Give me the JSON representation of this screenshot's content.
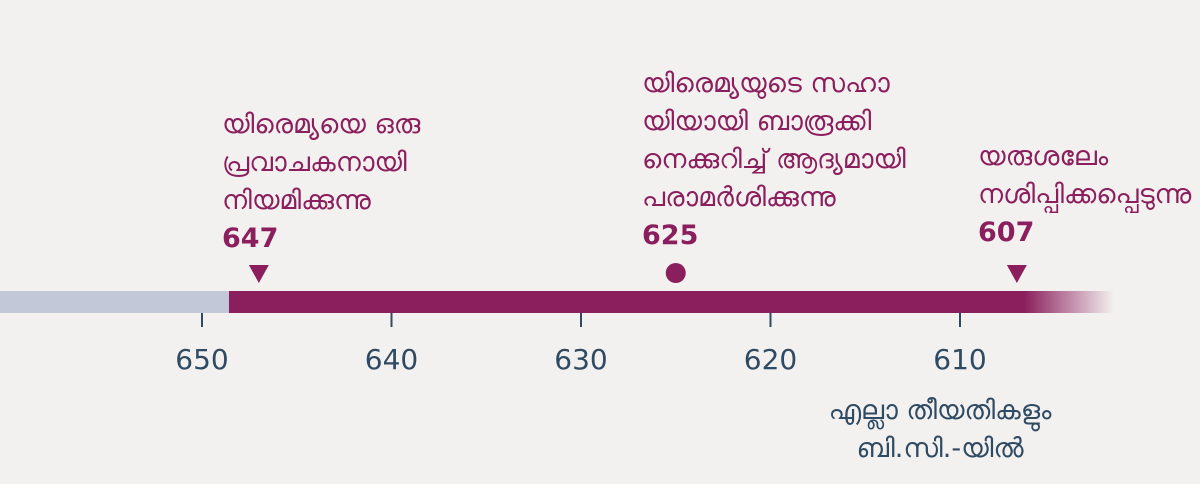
{
  "colors": {
    "background": "#f3f1ef",
    "past_bar": "#c3c8d9",
    "active_bar": "#8b1f5d",
    "event_text": "#8b1f5d",
    "axis_text": "#2f4a63",
    "tick": "#2f4a63"
  },
  "axis": {
    "ticks": [
      650,
      640,
      630,
      620,
      610
    ]
  },
  "events": [
    {
      "lines": [
        "യിരെമ്യയെ ഒരു",
        "പ്രവാചകനായി",
        "നിയമിക്കുന്നു"
      ],
      "year": "647",
      "marker": "triangle-down"
    },
    {
      "lines": [
        "യിരെമ്യയുടെ സഹാ",
        "യിയായി ബാരൂക്കി",
        "നെക്കുറിച്ച് ആദ്യമായി",
        "പരാമർശിക്കുന്നു"
      ],
      "year": "625",
      "marker": "circle"
    },
    {
      "lines": [
        "യരുശലേം",
        "നശിപ്പിക്കപ്പെടുന്നു"
      ],
      "year": "607",
      "marker": "triangle-down"
    }
  ],
  "note": {
    "lines": [
      "എല്ലാ തീയതികളും",
      "ബി.സി.-യിൽ"
    ]
  }
}
